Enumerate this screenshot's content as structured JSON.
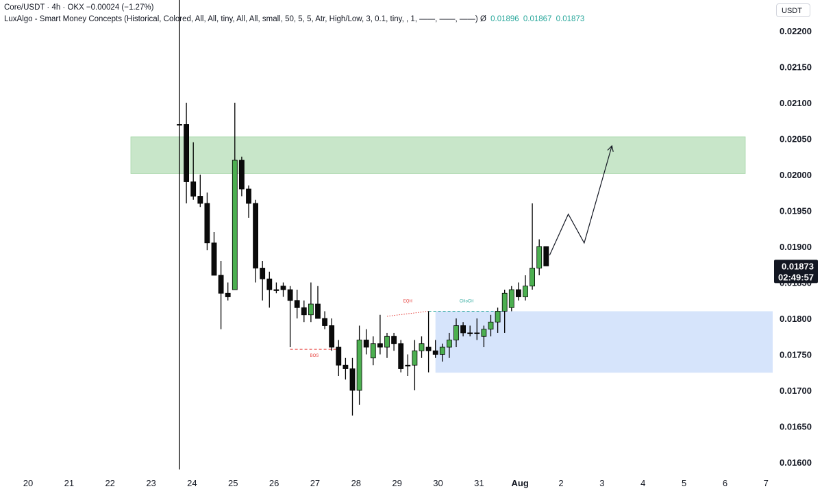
{
  "header": {
    "symbol_line": "Core/USDT · 4h · OKX  −0.00024 (−1.27%)",
    "indicator_line": "LuxAlgo - Smart Money Concepts (Historical, Colored, All, All, tiny, All, All, small, 50, 5, 5, Atr, High/Low, 3, 0.1, tiny, , 1, ——, ——, ——)  Ø",
    "indicator_values": [
      "0.01896",
      "0.01867",
      "0.01873"
    ]
  },
  "currency_button": "USDT",
  "price_label": {
    "price": "0.01873",
    "countdown": "02:49:57"
  },
  "colors": {
    "up": "#4caf50",
    "down": "#0b0b0b",
    "supply_zone": "#c8e6c9",
    "demand_zone": "#d6e4fb",
    "bos": "#e53935",
    "choch": "#26a69a"
  },
  "chart_data": {
    "type": "candlestick",
    "title": "",
    "xlabel": "",
    "ylabel": "",
    "ylim": [
      0.01585,
      0.02235
    ],
    "x_ticks": [
      "20",
      "21",
      "22",
      "23",
      "24",
      "25",
      "26",
      "27",
      "28",
      "29",
      "30",
      "31",
      "Aug",
      "2",
      "3",
      "4",
      "5",
      "6",
      "7"
    ],
    "y_ticks": [
      "0.02200",
      "0.02150",
      "0.02100",
      "0.02050",
      "0.02000",
      "0.01950",
      "0.01900",
      "0.01850",
      "0.01800",
      "0.01750",
      "0.01700",
      "0.01650",
      "0.01600"
    ],
    "candles": [
      {
        "o": 0.0207,
        "h": 0.023,
        "l": 0.0159,
        "c": 0.0207
      },
      {
        "o": 0.0207,
        "h": 0.021,
        "l": 0.0196,
        "c": 0.0199
      },
      {
        "o": 0.0199,
        "h": 0.02045,
        "l": 0.01965,
        "c": 0.0197
      },
      {
        "o": 0.0197,
        "h": 0.02,
        "l": 0.01955,
        "c": 0.0196
      },
      {
        "o": 0.0196,
        "h": 0.01975,
        "l": 0.01895,
        "c": 0.01905
      },
      {
        "o": 0.01905,
        "h": 0.0192,
        "l": 0.0186,
        "c": 0.0186
      },
      {
        "o": 0.0186,
        "h": 0.0188,
        "l": 0.01785,
        "c": 0.01835
      },
      {
        "o": 0.01835,
        "h": 0.0185,
        "l": 0.01825,
        "c": 0.0183
      },
      {
        "o": 0.0184,
        "h": 0.021,
        "l": 0.0184,
        "c": 0.0202
      },
      {
        "o": 0.0202,
        "h": 0.02025,
        "l": 0.0197,
        "c": 0.0198
      },
      {
        "o": 0.0198,
        "h": 0.01985,
        "l": 0.0194,
        "c": 0.0196
      },
      {
        "o": 0.0196,
        "h": 0.01965,
        "l": 0.0185,
        "c": 0.0187
      },
      {
        "o": 0.0187,
        "h": 0.0188,
        "l": 0.01825,
        "c": 0.01855
      },
      {
        "o": 0.01855,
        "h": 0.01865,
        "l": 0.01815,
        "c": 0.0184
      },
      {
        "o": 0.0184,
        "h": 0.0185,
        "l": 0.01835,
        "c": 0.0184
      },
      {
        "o": 0.01845,
        "h": 0.0185,
        "l": 0.0183,
        "c": 0.0184
      },
      {
        "o": 0.0184,
        "h": 0.01845,
        "l": 0.0176,
        "c": 0.01825
      },
      {
        "o": 0.01825,
        "h": 0.0184,
        "l": 0.018,
        "c": 0.01815
      },
      {
        "o": 0.01815,
        "h": 0.01825,
        "l": 0.01795,
        "c": 0.01805
      },
      {
        "o": 0.01805,
        "h": 0.0185,
        "l": 0.01795,
        "c": 0.0182
      },
      {
        "o": 0.0182,
        "h": 0.01845,
        "l": 0.018,
        "c": 0.018
      },
      {
        "o": 0.018,
        "h": 0.0181,
        "l": 0.01785,
        "c": 0.0179
      },
      {
        "o": 0.0179,
        "h": 0.018,
        "l": 0.01755,
        "c": 0.0176
      },
      {
        "o": 0.0176,
        "h": 0.0177,
        "l": 0.0172,
        "c": 0.01735
      },
      {
        "o": 0.01735,
        "h": 0.01745,
        "l": 0.01715,
        "c": 0.0173
      },
      {
        "o": 0.0173,
        "h": 0.01745,
        "l": 0.01665,
        "c": 0.017
      },
      {
        "o": 0.017,
        "h": 0.0179,
        "l": 0.0168,
        "c": 0.0177
      },
      {
        "o": 0.0177,
        "h": 0.01785,
        "l": 0.0175,
        "c": 0.0176
      },
      {
        "o": 0.01745,
        "h": 0.01775,
        "l": 0.01735,
        "c": 0.01765
      },
      {
        "o": 0.01765,
        "h": 0.01805,
        "l": 0.0175,
        "c": 0.0176
      },
      {
        "o": 0.0176,
        "h": 0.0178,
        "l": 0.01745,
        "c": 0.01775
      },
      {
        "o": 0.01775,
        "h": 0.0178,
        "l": 0.01755,
        "c": 0.01765
      },
      {
        "o": 0.01765,
        "h": 0.0177,
        "l": 0.01725,
        "c": 0.0173
      },
      {
        "o": 0.01735,
        "h": 0.0175,
        "l": 0.0172,
        "c": 0.01735
      },
      {
        "o": 0.01735,
        "h": 0.0177,
        "l": 0.017,
        "c": 0.01755
      },
      {
        "o": 0.01755,
        "h": 0.01775,
        "l": 0.01745,
        "c": 0.01765
      },
      {
        "o": 0.0176,
        "h": 0.0181,
        "l": 0.01725,
        "c": 0.01755
      },
      {
        "o": 0.01755,
        "h": 0.0177,
        "l": 0.01745,
        "c": 0.0175
      },
      {
        "o": 0.0175,
        "h": 0.01765,
        "l": 0.0174,
        "c": 0.0176
      },
      {
        "o": 0.0176,
        "h": 0.0178,
        "l": 0.01745,
        "c": 0.0177
      },
      {
        "o": 0.0177,
        "h": 0.018,
        "l": 0.0176,
        "c": 0.0179
      },
      {
        "o": 0.0179,
        "h": 0.01795,
        "l": 0.01775,
        "c": 0.0178
      },
      {
        "o": 0.0178,
        "h": 0.0179,
        "l": 0.01775,
        "c": 0.0178
      },
      {
        "o": 0.0178,
        "h": 0.018,
        "l": 0.0177,
        "c": 0.0178
      },
      {
        "o": 0.01775,
        "h": 0.0179,
        "l": 0.0176,
        "c": 0.01785
      },
      {
        "o": 0.01785,
        "h": 0.01805,
        "l": 0.01775,
        "c": 0.01795
      },
      {
        "o": 0.01795,
        "h": 0.01815,
        "l": 0.0178,
        "c": 0.0181
      },
      {
        "o": 0.0181,
        "h": 0.0184,
        "l": 0.0178,
        "c": 0.01835
      },
      {
        "o": 0.01815,
        "h": 0.01845,
        "l": 0.0181,
        "c": 0.0184
      },
      {
        "o": 0.0184,
        "h": 0.0185,
        "l": 0.01825,
        "c": 0.0183
      },
      {
        "o": 0.0183,
        "h": 0.0186,
        "l": 0.01825,
        "c": 0.01845
      },
      {
        "o": 0.01845,
        "h": 0.0196,
        "l": 0.0184,
        "c": 0.0187
      },
      {
        "o": 0.0187,
        "h": 0.0191,
        "l": 0.0186,
        "c": 0.019
      },
      {
        "o": 0.019,
        "h": 0.019,
        "l": 0.01873,
        "c": 0.01873
      }
    ],
    "zones": [
      {
        "name": "supply",
        "start_index": 0,
        "y_top": 0.020525,
        "y_bottom": 0.020015,
        "color": "#c8e6c9"
      },
      {
        "name": "demand",
        "start_index": 37,
        "y_top": 0.0181,
        "y_bottom": 0.017245,
        "color": "#d6e4fb"
      }
    ],
    "structure": [
      {
        "label": "BOS",
        "price": 0.01757,
        "from_index": 16,
        "to_index": 23,
        "color": "#e53935",
        "style": "dashed"
      },
      {
        "label": "EQH",
        "from_index": 30,
        "from_price": 0.01803,
        "to_index": 36,
        "to_price": 0.0181,
        "color": "#e53935",
        "style": "dotted"
      },
      {
        "label": "CHoCH",
        "price": 0.0181,
        "from_index": 36,
        "to_index": 47,
        "color": "#26a69a",
        "style": "dashed"
      }
    ],
    "projection": {
      "points": [
        [
          53.5,
          0.01888
        ],
        [
          56.2,
          0.01945
        ],
        [
          58.5,
          0.01905
        ],
        [
          62.5,
          0.0204
        ]
      ],
      "arrow": true
    }
  }
}
